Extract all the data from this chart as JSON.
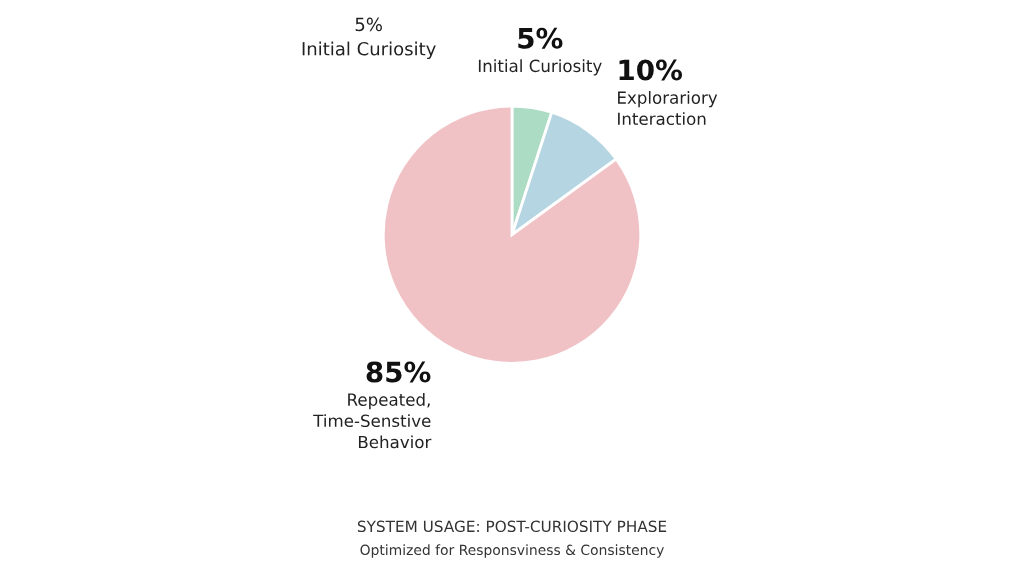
{
  "chart_data": {
    "type": "pie",
    "title": "SYSTEM USAGE: POST-CURIOSITY PHASE",
    "subtitle": "Optimized for Responsviness & Consistency",
    "categories": [
      "Initial Curiosity",
      "Explorariory\nInteraction",
      "Repeated,\nTime-Senstive\nBehavior"
    ],
    "values": [
      5,
      10,
      85
    ],
    "colors": [
      "#acdcc4",
      "#b5d5e2",
      "#f0c2c6"
    ],
    "value_labels": [
      "5%",
      "10%",
      "85%"
    ],
    "annotations": [
      "5%\nInitial Curiosity"
    ]
  }
}
